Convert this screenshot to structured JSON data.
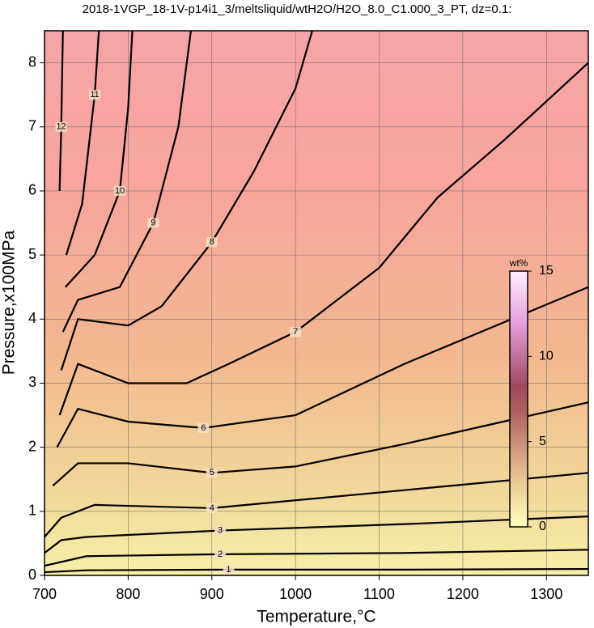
{
  "chart_data": {
    "type": "contour",
    "title": "2018-1VGP_18-1V-p14i1_3/meltsliquid/wtH2O/H2O_8.0_C1.000_3_PT, dz=0.1:",
    "x_label": "Temperature,°C",
    "y_label": "Pressure,x100MPa",
    "xlim": [
      700,
      1350
    ],
    "ylim": [
      0,
      8.5
    ],
    "xticks": [
      700,
      800,
      900,
      1000,
      1100,
      1200,
      1300
    ],
    "yticks": [
      0,
      1,
      2,
      3,
      4,
      5,
      6,
      7,
      8
    ],
    "grid": true,
    "series": [
      {
        "name": "1",
        "x": [
          700,
          750,
          920,
          1130,
          1350
        ],
        "y": [
          0.05,
          0.08,
          0.09,
          0.09,
          0.1
        ]
      },
      {
        "name": "2",
        "x": [
          700,
          750,
          910,
          1130,
          1350
        ],
        "y": [
          0.15,
          0.3,
          0.33,
          0.35,
          0.4
        ]
      },
      {
        "name": "3",
        "x": [
          700,
          720,
          750,
          910,
          1130,
          1350
        ],
        "y": [
          0.35,
          0.55,
          0.6,
          0.7,
          0.8,
          0.92
        ]
      },
      {
        "name": "4",
        "x": [
          700,
          720,
          760,
          900,
          1130,
          1350
        ],
        "y": [
          0.6,
          0.9,
          1.1,
          1.05,
          1.33,
          1.6
        ]
      },
      {
        "name": "5",
        "x": [
          710,
          740,
          800,
          900,
          1000,
          1130,
          1350
        ],
        "y": [
          1.4,
          1.75,
          1.75,
          1.6,
          1.7,
          2.05,
          2.7
        ]
      },
      {
        "name": "6",
        "x": [
          715,
          740,
          800,
          890,
          1000,
          1130,
          1350
        ],
        "y": [
          2.0,
          2.6,
          2.4,
          2.3,
          2.5,
          3.3,
          4.5
        ]
      },
      {
        "name": "7",
        "x": [
          718,
          740,
          800,
          870,
          920,
          1000,
          1100,
          1170,
          1250,
          1350
        ],
        "y": [
          2.5,
          3.3,
          3.0,
          3.0,
          3.3,
          3.8,
          4.8,
          5.9,
          6.8,
          8.0
        ]
      },
      {
        "name": "8",
        "x": [
          720,
          740,
          800,
          840,
          900,
          950,
          1000,
          1020
        ],
        "y": [
          3.2,
          4.0,
          3.9,
          4.2,
          5.2,
          6.3,
          7.6,
          8.5
        ]
      },
      {
        "name": "9",
        "x": [
          722,
          740,
          790,
          830,
          860,
          875
        ],
        "y": [
          3.8,
          4.3,
          4.5,
          5.5,
          7.0,
          8.5
        ]
      },
      {
        "name": "10",
        "x": [
          725,
          760,
          790,
          800,
          805
        ],
        "y": [
          4.5,
          5.0,
          6.0,
          7.3,
          8.5
        ]
      },
      {
        "name": "11",
        "x": [
          726,
          745,
          760,
          765
        ],
        "y": [
          5.0,
          5.8,
          7.5,
          8.5
        ]
      },
      {
        "name": "12",
        "x": [
          718,
          720,
          722
        ],
        "y": [
          6.0,
          7.0,
          8.5
        ]
      }
    ],
    "colorbar": {
      "label": "wt%",
      "lim": [
        0,
        15
      ],
      "ticks": [
        0,
        5,
        10,
        15
      ]
    }
  }
}
